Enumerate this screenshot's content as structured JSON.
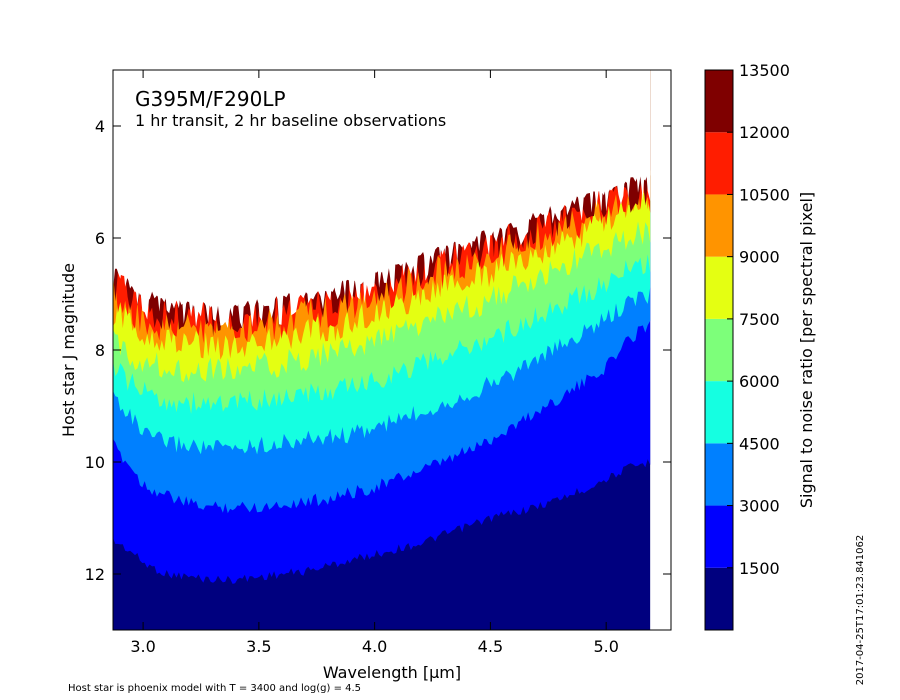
{
  "chart_data": {
    "type": "heatmap",
    "title": "G395M/F290LP",
    "subtitle": "1 hr transit, 2 hr baseline observations",
    "xlabel": "Wavelength [μm]",
    "ylabel": "Host star J magnitude",
    "xlim": [
      2.87,
      5.28
    ],
    "ylim": [
      13.0,
      3.0
    ],
    "y_inverted": true,
    "data_x_range": [
      2.87,
      5.19
    ],
    "x_ticks": [
      3.0,
      3.5,
      4.0,
      4.5,
      5.0
    ],
    "x_tick_labels": [
      "3.0",
      "3.5",
      "4.0",
      "4.5",
      "5.0"
    ],
    "y_ticks": [
      4,
      6,
      8,
      10,
      12
    ],
    "y_tick_labels": [
      "4",
      "6",
      "8",
      "10",
      "12"
    ],
    "colorbar": {
      "label": "Signal to noise ratio [per spectral pixel]",
      "levels": [
        0,
        1500,
        3000,
        4500,
        6000,
        7500,
        9000,
        10500,
        12000,
        13500
      ],
      "tick_values": [
        1500,
        3000,
        4500,
        6000,
        7500,
        9000,
        10500,
        12000,
        13500
      ],
      "tick_labels": [
        "1500",
        "3000",
        "4500",
        "6000",
        "7500",
        "9000",
        "10500",
        "12000",
        "13500"
      ],
      "colors": [
        "#00007f",
        "#0000fe",
        "#0080ff",
        "#15ffe1",
        "#7dff7a",
        "#e4ff12",
        "#ff9400",
        "#ff1d00",
        "#7f0000"
      ]
    },
    "contour_boundaries": {
      "x": [
        2.87,
        2.95,
        3.0,
        3.1,
        3.2,
        3.3,
        3.4,
        3.5,
        3.6,
        3.7,
        3.8,
        3.9,
        4.0,
        4.1,
        4.2,
        4.3,
        4.4,
        4.5,
        4.6,
        4.7,
        4.8,
        4.9,
        5.0,
        5.1,
        5.19
      ],
      "series": [
        {
          "level": 1500,
          "y": [
            11.4,
            11.6,
            11.8,
            12.0,
            12.05,
            12.1,
            12.1,
            12.05,
            12.0,
            11.95,
            11.85,
            11.75,
            11.65,
            11.55,
            11.45,
            11.3,
            11.15,
            11.0,
            10.9,
            10.8,
            10.65,
            10.5,
            10.3,
            10.1,
            10.0
          ]
        },
        {
          "level": 3000,
          "y": [
            9.7,
            10.1,
            10.4,
            10.6,
            10.75,
            10.8,
            10.8,
            10.8,
            10.75,
            10.7,
            10.65,
            10.55,
            10.45,
            10.3,
            10.15,
            10.0,
            9.8,
            9.6,
            9.35,
            9.1,
            8.85,
            8.6,
            8.3,
            7.8,
            7.5
          ]
        },
        {
          "level": 4500,
          "y": [
            8.8,
            9.2,
            9.5,
            9.65,
            9.7,
            9.75,
            9.75,
            9.7,
            9.65,
            9.6,
            9.55,
            9.5,
            9.4,
            9.25,
            9.1,
            8.95,
            8.8,
            8.6,
            8.4,
            8.15,
            7.95,
            7.7,
            7.45,
            7.15,
            7.0
          ]
        },
        {
          "level": 6000,
          "y": [
            8.3,
            8.6,
            8.75,
            8.9,
            8.95,
            8.95,
            8.95,
            8.9,
            8.85,
            8.8,
            8.75,
            8.65,
            8.55,
            8.4,
            8.25,
            8.1,
            7.95,
            7.8,
            7.6,
            7.4,
            7.2,
            7.0,
            6.8,
            6.55,
            6.45
          ]
        },
        {
          "level": 7500,
          "y": [
            7.85,
            8.1,
            8.2,
            8.3,
            8.35,
            8.35,
            8.35,
            8.3,
            8.25,
            8.15,
            8.05,
            7.95,
            7.85,
            7.7,
            7.55,
            7.4,
            7.25,
            7.1,
            6.9,
            6.75,
            6.55,
            6.35,
            6.15,
            5.95,
            5.85
          ]
        },
        {
          "level": 9000,
          "y": [
            7.3,
            7.55,
            7.7,
            7.8,
            7.85,
            7.9,
            7.9,
            7.85,
            7.8,
            7.7,
            7.6,
            7.5,
            7.35,
            7.2,
            7.05,
            6.9,
            6.75,
            6.6,
            6.45,
            6.3,
            6.1,
            5.9,
            5.7,
            5.5,
            5.4
          ]
        },
        {
          "level": 10500,
          "y": [
            7.0,
            7.3,
            7.45,
            7.55,
            7.6,
            7.6,
            7.6,
            7.55,
            7.5,
            7.4,
            7.3,
            7.2,
            7.05,
            6.9,
            6.75,
            6.6,
            6.45,
            6.3,
            6.15,
            6.0,
            5.85,
            5.7,
            5.55,
            5.35,
            5.25
          ]
        },
        {
          "level": 12000,
          "y": [
            6.75,
            7.05,
            7.2,
            7.3,
            7.35,
            7.4,
            7.4,
            7.35,
            7.3,
            7.2,
            7.1,
            7.0,
            6.85,
            6.7,
            6.55,
            6.4,
            6.25,
            6.1,
            5.95,
            5.8,
            5.65,
            5.5,
            5.35,
            5.2,
            5.1
          ]
        },
        {
          "level": 13500,
          "y": [
            6.6,
            6.9,
            7.05,
            7.15,
            7.2,
            7.25,
            7.25,
            7.2,
            7.15,
            7.05,
            6.95,
            6.85,
            6.7,
            6.55,
            6.4,
            6.25,
            6.1,
            5.95,
            5.8,
            5.65,
            5.5,
            5.35,
            5.2,
            5.05,
            4.95
          ]
        }
      ]
    },
    "footnote": "Host star is phoenix model with T = 3400 and log(g) = 4.5",
    "timestamp": "2017-04-25T17:01:23.841062",
    "grid": false
  }
}
